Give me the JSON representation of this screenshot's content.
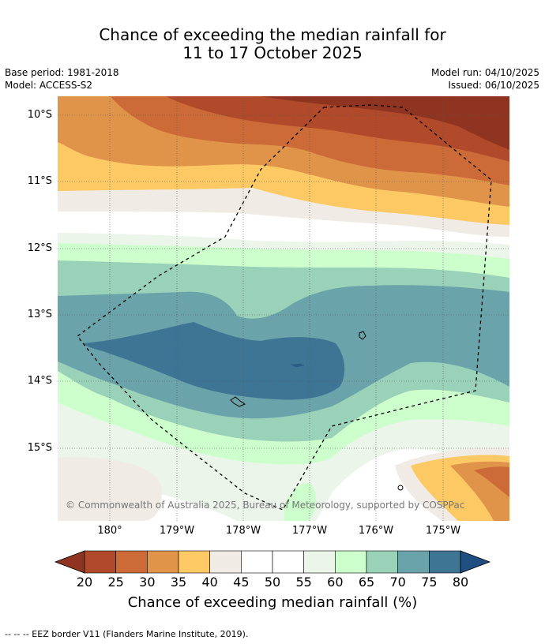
{
  "title": {
    "line1": "Chance of exceeding the median rainfall for",
    "line2": "11 to 17 October 2025"
  },
  "meta": {
    "base_period": "Base period: 1981-2018",
    "model": "Model: ACCESS-S2",
    "model_run": "Model run: 04/10/2025",
    "issued": "Issued: 06/10/2025"
  },
  "map": {
    "lat_labels": [
      "10°S",
      "11°S",
      "12°S",
      "13°S",
      "14°S",
      "15°S"
    ],
    "lon_labels": [
      "180°",
      "179°W",
      "178°W",
      "177°W",
      "176°W",
      "175°W"
    ],
    "copyright": "© Commonwealth of Australia 2025, Bureau of Meteorology, supported by COSPPac"
  },
  "colorbar": {
    "ticks": [
      "20",
      "25",
      "30",
      "35",
      "40",
      "45",
      "50",
      "55",
      "60",
      "65",
      "70",
      "75",
      "80"
    ],
    "colors": [
      "#8f3420",
      "#b14a2a",
      "#cc6a38",
      "#e0944a",
      "#fdc965",
      "#f0ebe5",
      "#ffffff",
      "#ffffff",
      "#ebf5ea",
      "#ccffcc",
      "#9ad1b9",
      "#6aa3a9",
      "#3e7595",
      "#1f4f80"
    ],
    "label": "Chance of exceeding median rainfall (%)"
  },
  "footer": "--  --  -- EEZ border V11 (Flanders Marine Institute, 2019)."
}
